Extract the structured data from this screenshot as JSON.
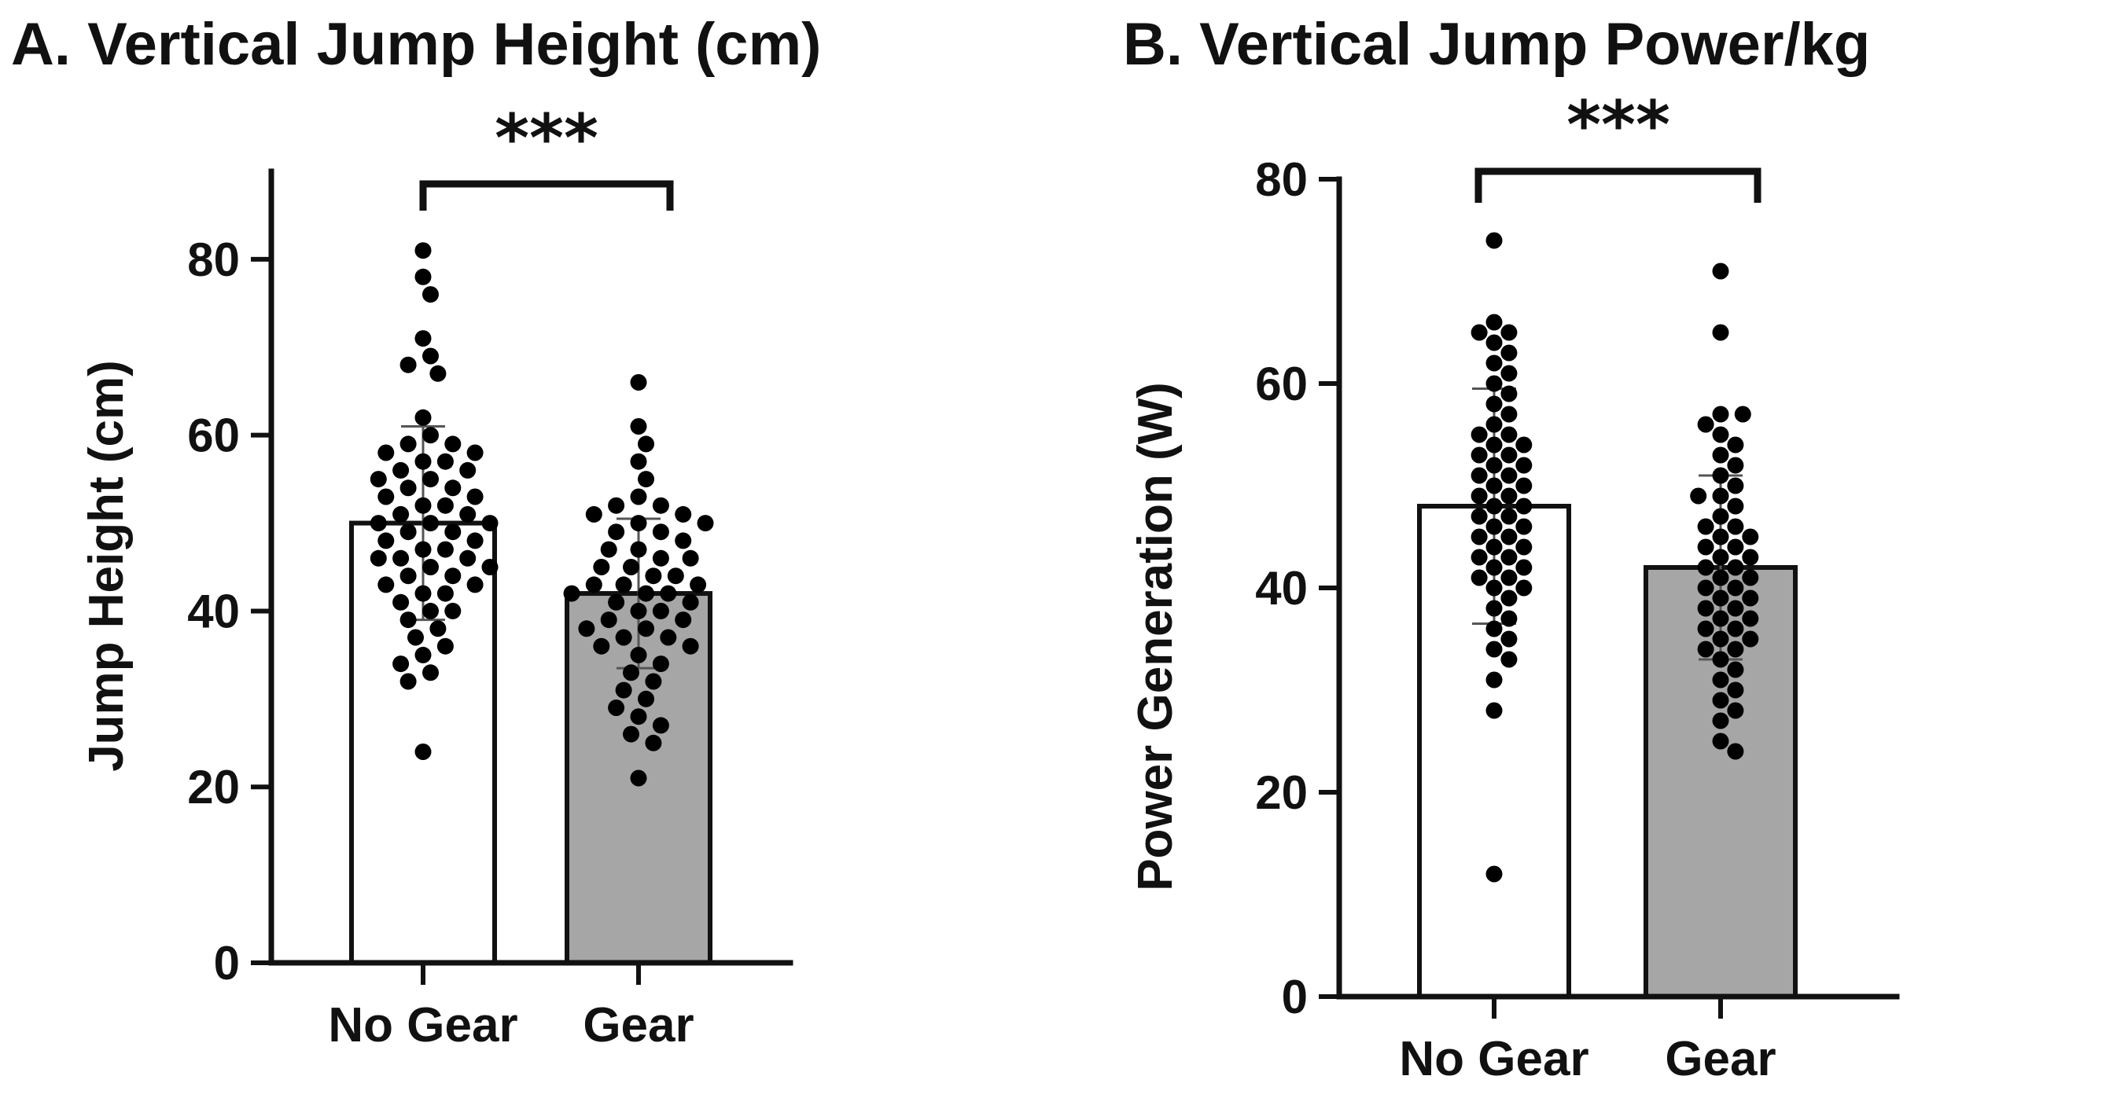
{
  "chart_data": [
    {
      "type": "bar",
      "panel": "A",
      "title": "A. Vertical Jump Height (cm)",
      "xlabel": "",
      "ylabel": "Jump Height (cm)",
      "ylim": [
        0,
        90
      ],
      "yticks": [
        0,
        20,
        40,
        60,
        80
      ],
      "categories": [
        "No Gear",
        "Gear"
      ],
      "values": [
        50,
        42
      ],
      "sd": [
        11,
        8.5
      ],
      "bar_colors": [
        "#ffffff",
        "#a6a6a6"
      ],
      "significance": "***",
      "points": [
        [
          81,
          78,
          76,
          71,
          69,
          68,
          67,
          62,
          60,
          59,
          59,
          58,
          58,
          57,
          57,
          56,
          56,
          55,
          55,
          54,
          54,
          53,
          53,
          52,
          52,
          51,
          51,
          50,
          50,
          50,
          49,
          49,
          48,
          48,
          47,
          47,
          46,
          46,
          46,
          45,
          45,
          44,
          44,
          43,
          43,
          42,
          42,
          41,
          40,
          40,
          39,
          38,
          37,
          36,
          35,
          34,
          33,
          32,
          24
        ],
        [
          66,
          61,
          59,
          57,
          55,
          53,
          52,
          52,
          51,
          51,
          50,
          50,
          49,
          49,
          48,
          47,
          47,
          46,
          46,
          45,
          45,
          44,
          44,
          43,
          43,
          43,
          42,
          42,
          42,
          41,
          41,
          40,
          40,
          39,
          39,
          38,
          38,
          37,
          37,
          36,
          36,
          35,
          34,
          33,
          32,
          31,
          30,
          29,
          28,
          27,
          26,
          25,
          21
        ]
      ]
    },
    {
      "type": "bar",
      "panel": "B",
      "title": "B. Vertical Jump Power/kg",
      "xlabel": "",
      "ylabel": "Power Generation (W)",
      "ylim": [
        0,
        80
      ],
      "yticks": [
        0,
        20,
        40,
        60,
        80
      ],
      "categories": [
        "No Gear",
        "Gear"
      ],
      "values": [
        48,
        42
      ],
      "sd": [
        11.5,
        9
      ],
      "bar_colors": [
        "#ffffff",
        "#a6a6a6"
      ],
      "significance": "***",
      "points": [
        [
          74,
          66,
          65,
          65,
          64,
          63,
          62,
          61,
          60,
          59,
          58,
          57,
          56,
          55,
          55,
          54,
          54,
          53,
          53,
          52,
          52,
          51,
          51,
          50,
          50,
          49,
          49,
          48,
          48,
          47,
          47,
          46,
          46,
          45,
          45,
          44,
          44,
          43,
          43,
          42,
          42,
          41,
          41,
          40,
          40,
          39,
          38,
          37,
          36,
          35,
          34,
          33,
          31,
          28,
          12
        ],
        [
          71,
          65,
          57,
          57,
          56,
          55,
          54,
          53,
          52,
          51,
          50,
          49,
          49,
          48,
          47,
          46,
          46,
          45,
          45,
          44,
          44,
          43,
          43,
          42,
          42,
          41,
          41,
          40,
          40,
          39,
          39,
          38,
          38,
          37,
          37,
          36,
          36,
          35,
          35,
          34,
          34,
          33,
          32,
          31,
          30,
          29,
          28,
          27,
          25,
          24
        ]
      ]
    }
  ]
}
